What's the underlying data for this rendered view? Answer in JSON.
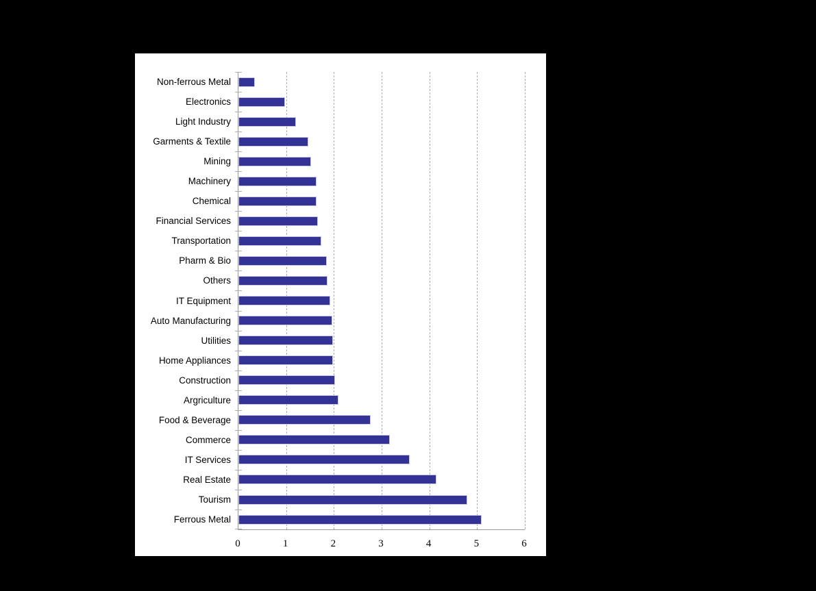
{
  "chart_data": {
    "type": "bar",
    "orientation": "horizontal",
    "title": "",
    "categories": [
      "Non-ferrous Metal",
      "Electronics",
      "Light Industry",
      "Garments & Textile",
      "Mining",
      "Machinery",
      "Chemical",
      "Financial Services",
      "Transportation",
      "Pharm & Bio",
      "Others",
      "IT Equipment",
      "Auto Manufacturing",
      "Utilities",
      "Home Appliances",
      "Construction",
      "Argriculture",
      "Food & Beverage",
      "Commerce",
      "IT Services",
      "Real Estate",
      "Tourism",
      "Ferrous Metal"
    ],
    "values": [
      0.35,
      0.97,
      1.21,
      1.46,
      1.52,
      1.63,
      1.63,
      1.66,
      1.74,
      1.85,
      1.86,
      1.92,
      1.96,
      1.98,
      1.98,
      2.03,
      2.09,
      2.77,
      3.17,
      3.59,
      4.15,
      4.79,
      5.1
    ],
    "xlabel": "",
    "ylabel": "",
    "xlim": [
      0,
      6
    ],
    "x_ticks": [
      "0",
      "1",
      "2",
      "3",
      "4",
      "5",
      "6"
    ],
    "grid": "vertical-dashed",
    "legend": "none",
    "colors": {
      "page_bg": "#000000",
      "canvas_bg": "#ffffff",
      "bar_fill": "#333396",
      "bar_border": "#c9c9e2",
      "gridline": "#adadad",
      "axis": "#999999",
      "tick": "#aaaaaa",
      "text": "#000000"
    }
  }
}
